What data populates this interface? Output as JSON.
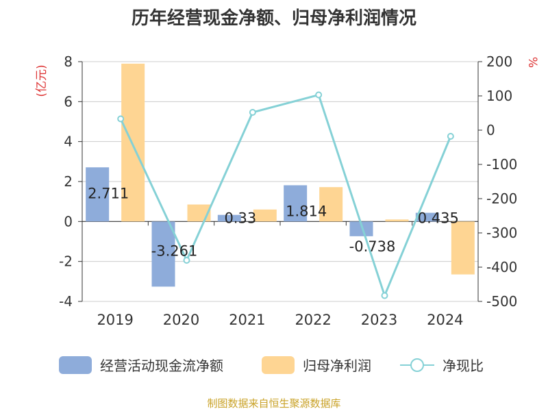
{
  "title": "历年经营现金净额、归母净利润情况",
  "source_note": "制图数据来自恒生聚源数据库",
  "colors": {
    "ocf": "#8eacda",
    "profit": "#fed593",
    "ratio": "#85d1d6",
    "axis_unit": "#dd3333",
    "source": "#c9a227"
  },
  "chart_data": {
    "type": "bar+line",
    "title": "历年经营现金净额、归母净利润情况",
    "categories": [
      "2019",
      "2020",
      "2021",
      "2022",
      "2023",
      "2024"
    ],
    "y_left": {
      "label": "(亿元)",
      "range": [
        -4,
        8
      ],
      "ticks": [
        -4,
        -2,
        0,
        2,
        4,
        6,
        8
      ]
    },
    "y_right": {
      "label": "%",
      "range": [
        -500,
        200
      ],
      "ticks": [
        -500,
        -400,
        -300,
        -200,
        -100,
        0,
        100,
        200
      ]
    },
    "series": [
      {
        "name": "经营活动现金流净额",
        "type": "bar",
        "axis": "left",
        "values": [
          2.711,
          -3.261,
          0.33,
          1.814,
          -0.738,
          0.435
        ],
        "labels": [
          "2.711",
          "-3.261",
          "0.33",
          "1.814",
          "-0.738",
          "0.435"
        ]
      },
      {
        "name": "归母净利润",
        "type": "bar",
        "axis": "left",
        "values": [
          7.9,
          0.85,
          0.6,
          1.72,
          0.1,
          -2.65
        ]
      },
      {
        "name": "净现比",
        "type": "line",
        "axis": "right",
        "values": [
          33,
          -380,
          52,
          103,
          -483,
          -18
        ]
      }
    ],
    "legend": [
      "经营活动现金流净额",
      "归母净利润",
      "净现比"
    ],
    "legend_position": "bottom",
    "grid": true
  }
}
